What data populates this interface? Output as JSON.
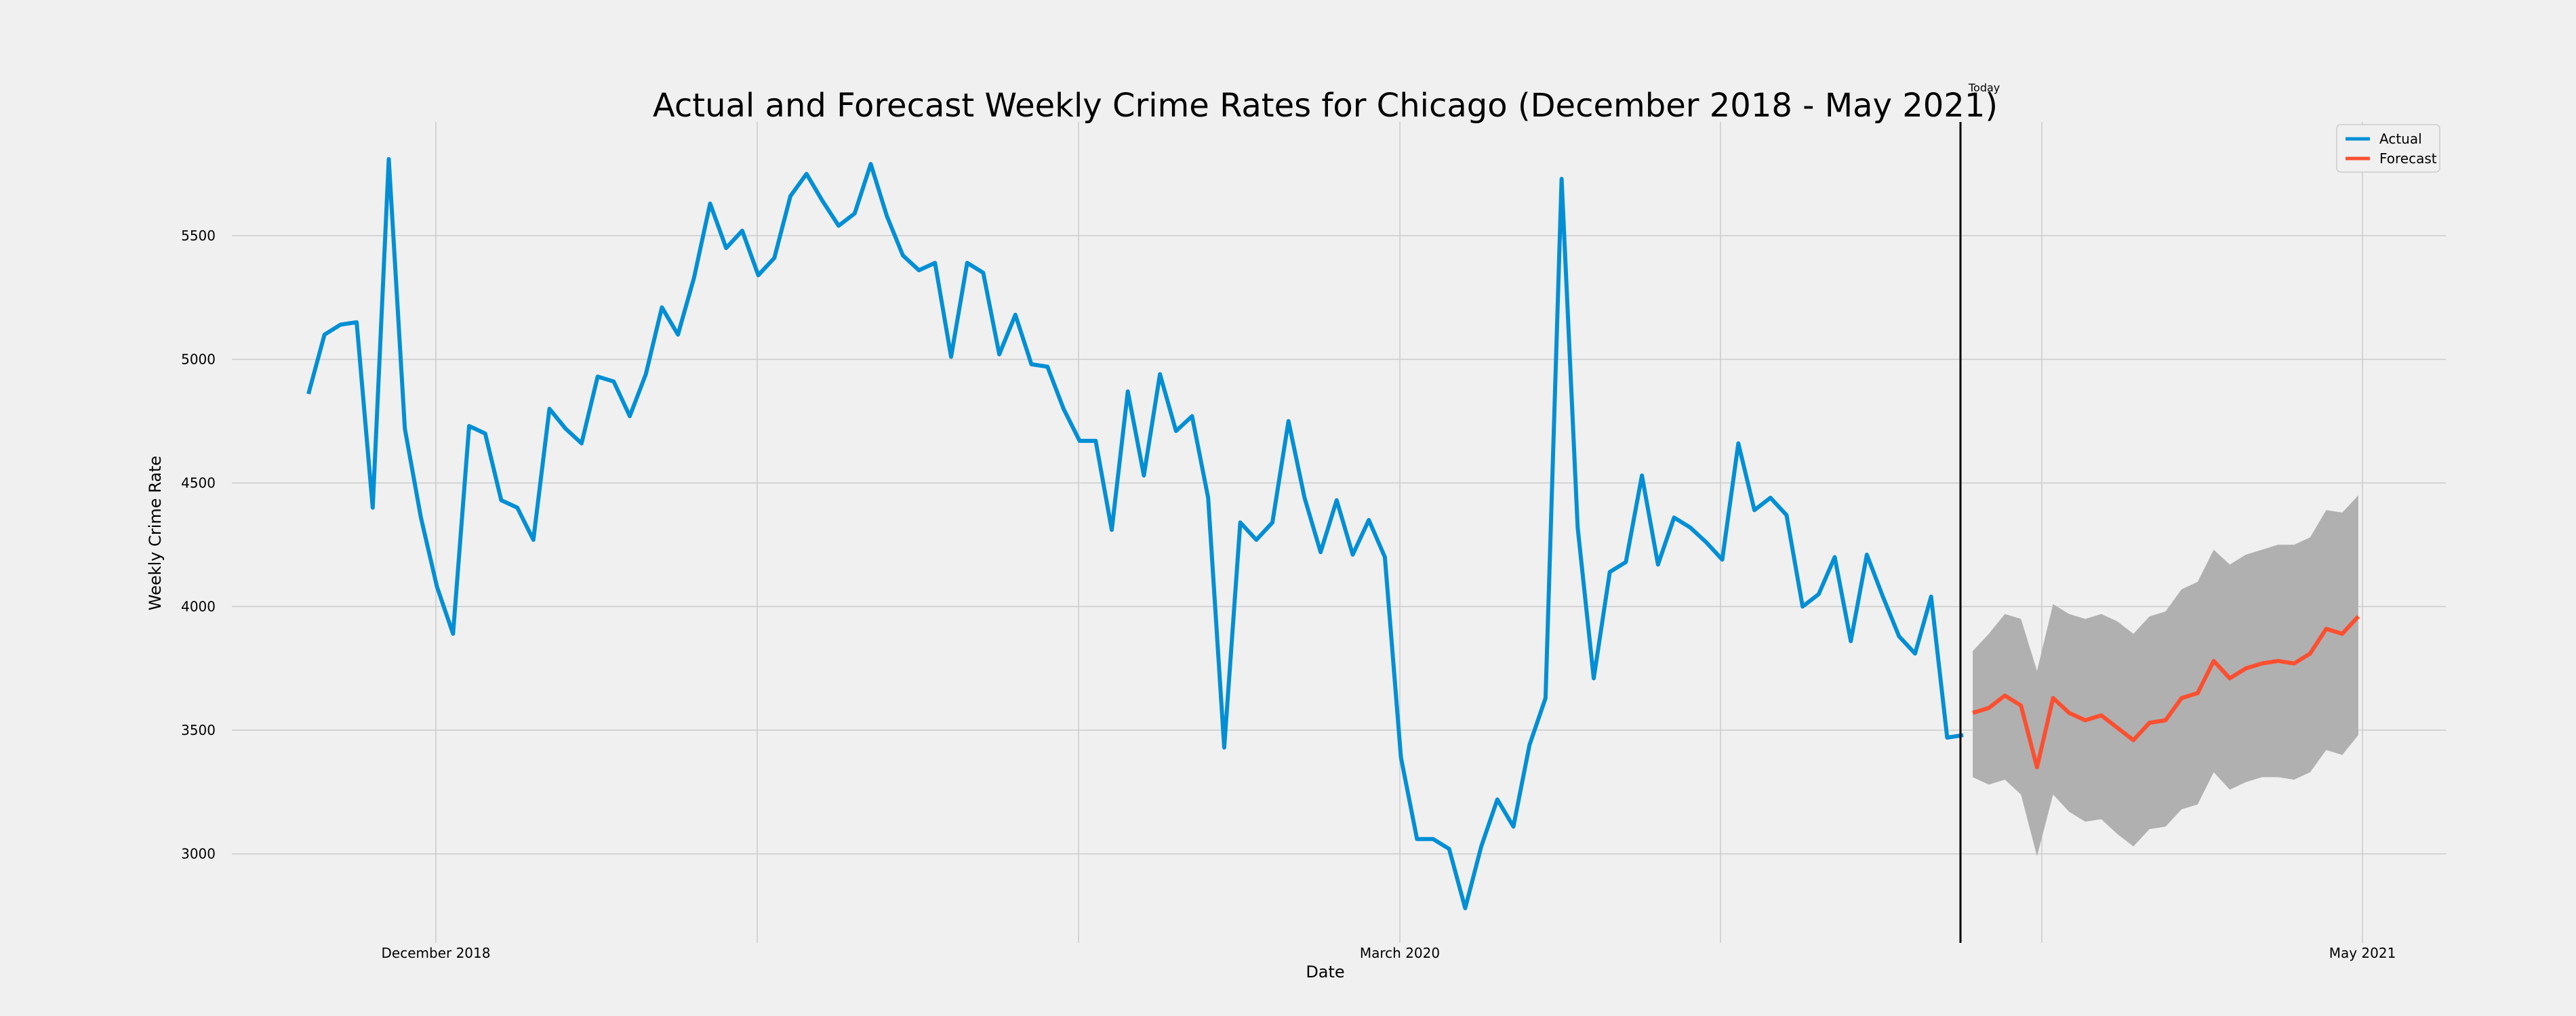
{
  "chart_data": {
    "type": "line",
    "title": "Actual and Forecast Weekly Crime Rates for Chicago (December 2018 - May 2021)",
    "xlabel": "Date",
    "ylabel": "Weekly Crime Rate",
    "x_ticks": [
      "December 2018",
      "March 2020",
      "May 2021"
    ],
    "y_ticks": [
      3000,
      3500,
      4000,
      4500,
      5000,
      5500
    ],
    "ylim": [
      2640,
      5960
    ],
    "grid": true,
    "legend_position": "top-right",
    "today_marker": "Today",
    "colors": {
      "actual": "#008fd5",
      "forecast": "#fc4f30",
      "interval": "#b0b0b0",
      "today": "#000000"
    },
    "series": [
      {
        "name": "Actual",
        "values": [
          4860,
          5100,
          5140,
          5150,
          4400,
          5810,
          4720,
          4360,
          4080,
          3890,
          4730,
          4700,
          4430,
          4400,
          4270,
          4800,
          4720,
          4660,
          4930,
          4910,
          4770,
          4940,
          5210,
          5100,
          5330,
          5630,
          5450,
          5520,
          5340,
          5410,
          5660,
          5750,
          5640,
          5540,
          5590,
          5790,
          5580,
          5420,
          5360,
          5390,
          5010,
          5390,
          5350,
          5020,
          5180,
          4980,
          4970,
          4800,
          4670,
          4670,
          4310,
          4870,
          4530,
          4940,
          4710,
          4770,
          4440,
          3430,
          4340,
          4270,
          4340,
          4750,
          4440,
          4220,
          4430,
          4210,
          4350,
          4200,
          3390,
          3060,
          3060,
          3020,
          2780,
          3030,
          3220,
          3110,
          3440,
          3630,
          5730,
          4320,
          3710,
          4140,
          4180,
          4530,
          4170,
          4360,
          4320,
          4260,
          4190,
          4660,
          4390,
          4440,
          4370,
          4000,
          4050,
          4200,
          3860,
          4210,
          4040,
          3880,
          3810,
          4040,
          3470,
          3480
        ]
      },
      {
        "name": "Forecast",
        "values": [
          3570,
          3590,
          3640,
          3600,
          3350,
          3630,
          3570,
          3540,
          3560,
          3510,
          3460,
          3530,
          3540,
          3630,
          3650,
          3780,
          3710,
          3750,
          3770,
          3780,
          3770,
          3810,
          3910,
          3890,
          3960
        ],
        "lower": [
          3310,
          3280,
          3300,
          3240,
          2990,
          3240,
          3170,
          3130,
          3140,
          3080,
          3030,
          3100,
          3110,
          3180,
          3200,
          3330,
          3260,
          3290,
          3310,
          3310,
          3300,
          3330,
          3420,
          3400,
          3480
        ],
        "upper": [
          3820,
          3890,
          3970,
          3950,
          3740,
          4010,
          3970,
          3950,
          3970,
          3940,
          3890,
          3960,
          3980,
          4070,
          4100,
          4230,
          4170,
          4210,
          4230,
          4250,
          4250,
          4280,
          4390,
          4380,
          4450
        ]
      }
    ]
  }
}
